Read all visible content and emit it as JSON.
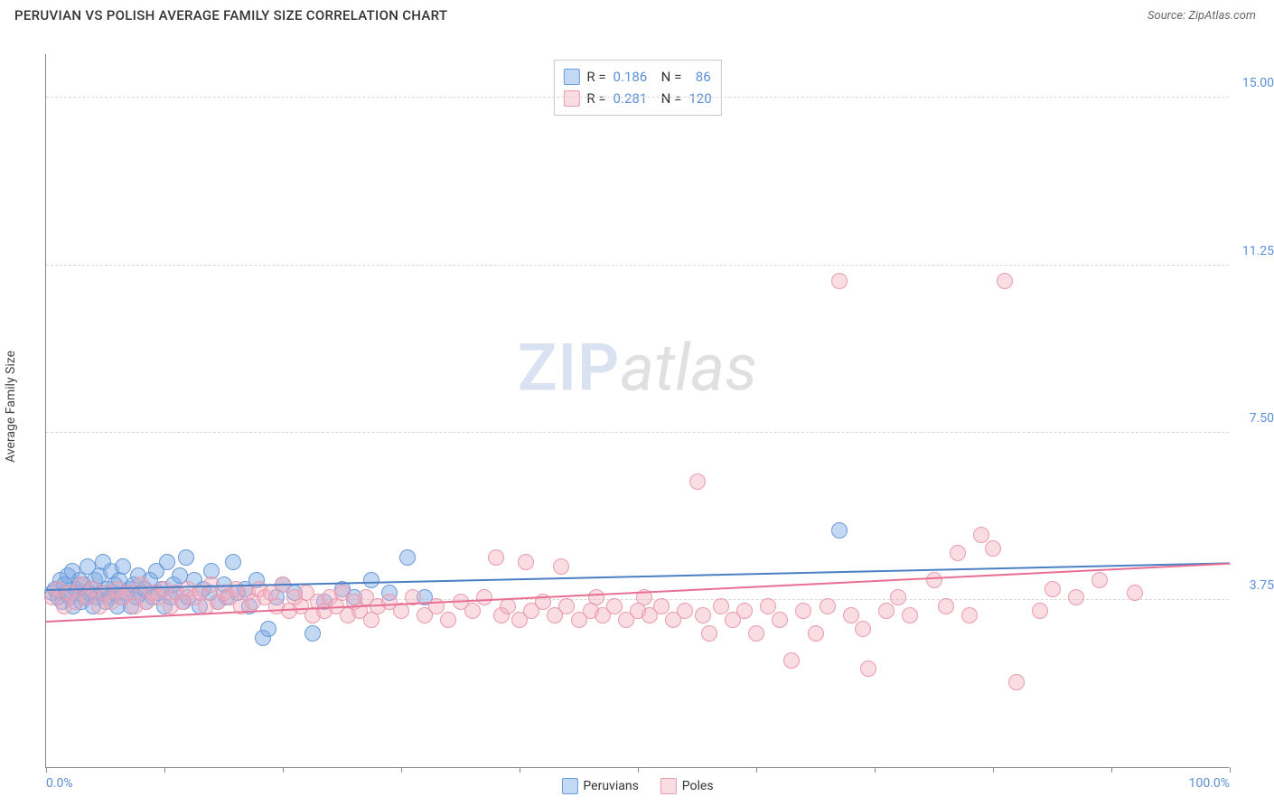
{
  "header": {
    "title": "PERUVIAN VS POLISH AVERAGE FAMILY SIZE CORRELATION CHART",
    "source": "Source: ZipAtlas.com"
  },
  "chart": {
    "type": "scatter",
    "yaxis_label": "Average Family Size",
    "xlim": [
      0,
      100
    ],
    "ylim": [
      0,
      16
    ],
    "x_tick_positions": [
      0,
      10,
      20,
      30,
      40,
      50,
      60,
      70,
      80,
      90,
      100
    ],
    "x_tick_labels": {
      "0": "0.0%",
      "100": "100.0%"
    },
    "y_gridlines": [
      3.75,
      7.5,
      11.25,
      15.0
    ],
    "y_tick_labels": [
      "3.75",
      "7.50",
      "11.25",
      "15.00"
    ],
    "colors": {
      "axis_label": "#5b8fd9",
      "grid": "#d8d8d8",
      "text": "#333333",
      "series_a_fill": "rgba(123,169,227,0.45)",
      "series_a_stroke": "#6a9bdc",
      "series_a_line": "#4a7fc4",
      "series_b_fill": "rgba(244,171,189,0.42)",
      "series_b_stroke": "#e99bb0",
      "series_b_line": "#e86f93",
      "background": "#ffffff"
    },
    "marker_radius": 9,
    "series": [
      {
        "name": "Peruvians",
        "color_key": "a",
        "stats": {
          "R": "0.186",
          "N": "86"
        },
        "trend": {
          "x1": 0,
          "y1": 3.95,
          "x2": 100,
          "y2": 4.55
        },
        "points": [
          [
            0.5,
            3.9
          ],
          [
            0.8,
            4.0
          ],
          [
            1.0,
            3.8
          ],
          [
            1.2,
            4.2
          ],
          [
            1.4,
            3.7
          ],
          [
            1.5,
            4.1
          ],
          [
            1.7,
            3.9
          ],
          [
            1.8,
            4.3
          ],
          [
            2.0,
            3.8
          ],
          [
            2.2,
            4.4
          ],
          [
            2.3,
            3.6
          ],
          [
            2.5,
            4.0
          ],
          [
            2.7,
            3.9
          ],
          [
            2.8,
            4.2
          ],
          [
            3.0,
            3.7
          ],
          [
            3.1,
            4.1
          ],
          [
            3.3,
            3.8
          ],
          [
            3.5,
            4.5
          ],
          [
            3.6,
            3.9
          ],
          [
            3.8,
            4.0
          ],
          [
            4.0,
            3.6
          ],
          [
            4.1,
            4.2
          ],
          [
            4.3,
            3.8
          ],
          [
            4.5,
            4.3
          ],
          [
            4.7,
            3.9
          ],
          [
            4.8,
            4.6
          ],
          [
            5.0,
            3.7
          ],
          [
            5.2,
            4.0
          ],
          [
            5.4,
            3.8
          ],
          [
            5.5,
            4.4
          ],
          [
            5.7,
            3.9
          ],
          [
            5.8,
            4.1
          ],
          [
            6.0,
            3.6
          ],
          [
            6.2,
            4.2
          ],
          [
            6.4,
            3.8
          ],
          [
            6.5,
            4.5
          ],
          [
            6.8,
            3.9
          ],
          [
            7.0,
            4.0
          ],
          [
            7.2,
            3.6
          ],
          [
            7.4,
            4.1
          ],
          [
            7.6,
            3.8
          ],
          [
            7.8,
            4.3
          ],
          [
            8.0,
            3.9
          ],
          [
            8.3,
            4.0
          ],
          [
            8.5,
            3.7
          ],
          [
            8.8,
            4.2
          ],
          [
            9.0,
            3.8
          ],
          [
            9.3,
            4.4
          ],
          [
            9.5,
            3.9
          ],
          [
            9.8,
            4.0
          ],
          [
            10.0,
            3.6
          ],
          [
            10.2,
            4.6
          ],
          [
            10.5,
            3.8
          ],
          [
            10.8,
            4.1
          ],
          [
            11.0,
            3.9
          ],
          [
            11.3,
            4.3
          ],
          [
            11.6,
            3.7
          ],
          [
            11.8,
            4.7
          ],
          [
            12.0,
            3.8
          ],
          [
            12.5,
            4.2
          ],
          [
            13.0,
            3.6
          ],
          [
            13.3,
            4.0
          ],
          [
            13.8,
            3.9
          ],
          [
            14.0,
            4.4
          ],
          [
            14.5,
            3.7
          ],
          [
            15.0,
            4.1
          ],
          [
            15.3,
            3.8
          ],
          [
            15.8,
            4.6
          ],
          [
            16.2,
            3.9
          ],
          [
            16.8,
            4.0
          ],
          [
            17.2,
            3.6
          ],
          [
            17.8,
            4.2
          ],
          [
            18.3,
            2.9
          ],
          [
            18.8,
            3.1
          ],
          [
            19.5,
            3.8
          ],
          [
            20.0,
            4.1
          ],
          [
            21.0,
            3.9
          ],
          [
            22.5,
            3.0
          ],
          [
            23.5,
            3.7
          ],
          [
            25.0,
            4.0
          ],
          [
            26.0,
            3.8
          ],
          [
            27.5,
            4.2
          ],
          [
            29.0,
            3.9
          ],
          [
            30.5,
            4.7
          ],
          [
            32.0,
            3.8
          ],
          [
            67.0,
            5.3
          ]
        ]
      },
      {
        "name": "Poles",
        "color_key": "b",
        "stats": {
          "R": "0.281",
          "N": "120"
        },
        "trend": {
          "x1": 0,
          "y1": 3.25,
          "x2": 100,
          "y2": 4.55
        },
        "points": [
          [
            0.5,
            3.8
          ],
          [
            1.0,
            4.0
          ],
          [
            1.5,
            3.6
          ],
          [
            2.0,
            3.9
          ],
          [
            2.5,
            3.7
          ],
          [
            3.0,
            4.1
          ],
          [
            3.5,
            3.8
          ],
          [
            4.0,
            4.0
          ],
          [
            4.5,
            3.6
          ],
          [
            5.0,
            3.9
          ],
          [
            5.5,
            3.7
          ],
          [
            6.0,
            4.0
          ],
          [
            6.5,
            3.8
          ],
          [
            7.0,
            3.9
          ],
          [
            7.5,
            3.6
          ],
          [
            8.0,
            4.1
          ],
          [
            8.5,
            3.7
          ],
          [
            9.0,
            3.9
          ],
          [
            9.5,
            3.8
          ],
          [
            10.0,
            4.0
          ],
          [
            10.5,
            3.6
          ],
          [
            11.0,
            3.9
          ],
          [
            11.5,
            3.7
          ],
          [
            12.0,
            4.0
          ],
          [
            12.5,
            3.8
          ],
          [
            13.0,
            3.9
          ],
          [
            13.5,
            3.6
          ],
          [
            14.0,
            4.1
          ],
          [
            14.5,
            3.7
          ],
          [
            15.0,
            3.9
          ],
          [
            15.5,
            3.8
          ],
          [
            16.0,
            4.0
          ],
          [
            16.5,
            3.6
          ],
          [
            17.0,
            3.9
          ],
          [
            17.5,
            3.7
          ],
          [
            18.0,
            4.0
          ],
          [
            18.5,
            3.8
          ],
          [
            19.0,
            3.9
          ],
          [
            19.5,
            3.6
          ],
          [
            20.0,
            4.1
          ],
          [
            20.5,
            3.5
          ],
          [
            21.0,
            3.8
          ],
          [
            21.5,
            3.6
          ],
          [
            22.0,
            3.9
          ],
          [
            22.5,
            3.4
          ],
          [
            23.0,
            3.7
          ],
          [
            23.5,
            3.5
          ],
          [
            24.0,
            3.8
          ],
          [
            24.5,
            3.6
          ],
          [
            25.0,
            3.9
          ],
          [
            25.5,
            3.4
          ],
          [
            26.0,
            3.7
          ],
          [
            26.5,
            3.5
          ],
          [
            27.0,
            3.8
          ],
          [
            27.5,
            3.3
          ],
          [
            28.0,
            3.6
          ],
          [
            29.0,
            3.7
          ],
          [
            30.0,
            3.5
          ],
          [
            31.0,
            3.8
          ],
          [
            32.0,
            3.4
          ],
          [
            33.0,
            3.6
          ],
          [
            34.0,
            3.3
          ],
          [
            35.0,
            3.7
          ],
          [
            36.0,
            3.5
          ],
          [
            37.0,
            3.8
          ],
          [
            38.0,
            4.7
          ],
          [
            38.5,
            3.4
          ],
          [
            39.0,
            3.6
          ],
          [
            40.0,
            3.3
          ],
          [
            40.5,
            4.6
          ],
          [
            41.0,
            3.5
          ],
          [
            42.0,
            3.7
          ],
          [
            43.0,
            3.4
          ],
          [
            43.5,
            4.5
          ],
          [
            44.0,
            3.6
          ],
          [
            45.0,
            3.3
          ],
          [
            46.0,
            3.5
          ],
          [
            46.5,
            3.8
          ],
          [
            47.0,
            3.4
          ],
          [
            48.0,
            3.6
          ],
          [
            49.0,
            3.3
          ],
          [
            50.0,
            3.5
          ],
          [
            50.5,
            3.8
          ],
          [
            51.0,
            3.4
          ],
          [
            52.0,
            3.6
          ],
          [
            53.0,
            3.3
          ],
          [
            54.0,
            3.5
          ],
          [
            55.0,
            6.4
          ],
          [
            55.5,
            3.4
          ],
          [
            56.0,
            3.0
          ],
          [
            57.0,
            3.6
          ],
          [
            58.0,
            3.3
          ],
          [
            59.0,
            3.5
          ],
          [
            60.0,
            3.0
          ],
          [
            61.0,
            3.6
          ],
          [
            62.0,
            3.3
          ],
          [
            63.0,
            2.4
          ],
          [
            64.0,
            3.5
          ],
          [
            65.0,
            3.0
          ],
          [
            66.0,
            3.6
          ],
          [
            67.0,
            10.9
          ],
          [
            68.0,
            3.4
          ],
          [
            69.0,
            3.1
          ],
          [
            69.5,
            2.2
          ],
          [
            71.0,
            3.5
          ],
          [
            72.0,
            3.8
          ],
          [
            73.0,
            3.4
          ],
          [
            75.0,
            4.2
          ],
          [
            76.0,
            3.6
          ],
          [
            77.0,
            4.8
          ],
          [
            78.0,
            3.4
          ],
          [
            79.0,
            5.2
          ],
          [
            80.0,
            4.9
          ],
          [
            81.0,
            10.9
          ],
          [
            82.0,
            1.9
          ],
          [
            84.0,
            3.5
          ],
          [
            85.0,
            4.0
          ],
          [
            87.0,
            3.8
          ],
          [
            89.0,
            4.2
          ],
          [
            92.0,
            3.9
          ]
        ]
      }
    ],
    "bottom_legend": [
      "Peruvians",
      "Poles"
    ],
    "watermark": {
      "zip": "ZIP",
      "atlas": "atlas"
    }
  }
}
